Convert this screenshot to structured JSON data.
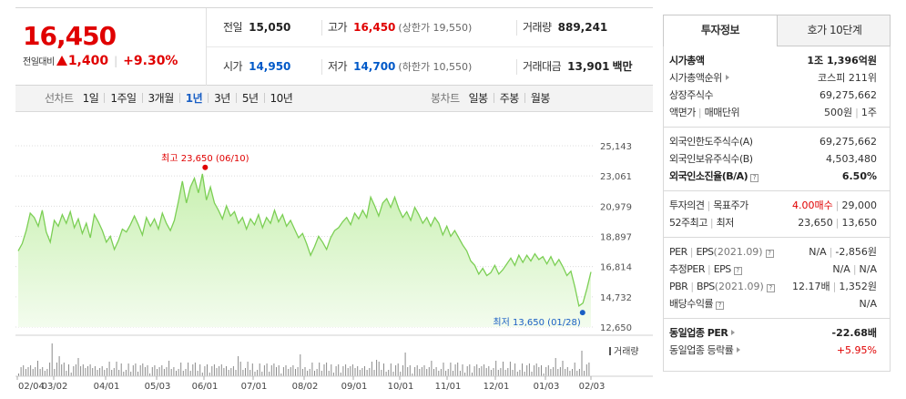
{
  "quote": {
    "price": "16,450",
    "compare_label": "전일대비",
    "compare_amount": "1,400",
    "compare_rate": "+9.30%",
    "prev_close_label": "전일",
    "prev_close": "15,050",
    "open_label": "시가",
    "open": "14,950",
    "high_label": "고가",
    "high": "16,450",
    "upper_limit": "(상한가 19,550)",
    "low_label": "저가",
    "low": "14,700",
    "lower_limit": "(하한가 10,550)",
    "volume_label": "거래량",
    "volume": "889,241",
    "amount_label": "거래대금",
    "amount": "13,901",
    "amount_unit": "백만",
    "colors": {
      "up": "#e00000",
      "down": "#0059c8"
    }
  },
  "period_bar": {
    "line_title": "선차트",
    "line_periods": [
      "1일",
      "1주일",
      "3개월",
      "1년",
      "3년",
      "5년",
      "10년"
    ],
    "active_period": "1년",
    "candle_title": "봉차트",
    "candle_periods": [
      "일봉",
      "주봉",
      "월봉"
    ]
  },
  "chart_data": {
    "type": "area",
    "y_ticks": [
      "25,143",
      "23,061",
      "20,979",
      "18,897",
      "16,814",
      "14,732",
      "12,650"
    ],
    "ylim": [
      12650,
      25143
    ],
    "x_ticks": [
      "02/04",
      "03/02",
      "04/01",
      "05/03",
      "06/01",
      "07/01",
      "08/02",
      "09/01",
      "10/01",
      "11/01",
      "12/01",
      "01/03",
      "02/03"
    ],
    "values": [
      17900,
      18400,
      19300,
      20500,
      20200,
      19600,
      20700,
      19200,
      18500,
      20000,
      19600,
      20400,
      19800,
      20600,
      19500,
      20100,
      19100,
      19800,
      18800,
      20400,
      19900,
      19300,
      18500,
      18900,
      18000,
      18600,
      19400,
      19200,
      19700,
      20300,
      19700,
      19000,
      20200,
      19600,
      20100,
      19400,
      20500,
      19800,
      19300,
      20000,
      21300,
      22700,
      21200,
      22300,
      22900,
      21900,
      23200,
      21400,
      22300,
      21200,
      20700,
      20100,
      21000,
      20300,
      20600,
      19800,
      20200,
      19400,
      20100,
      19700,
      20400,
      19500,
      20200,
      19800,
      20700,
      19900,
      20400,
      19600,
      20000,
      19400,
      18800,
      19100,
      18400,
      17600,
      18200,
      18900,
      18500,
      18000,
      18800,
      19300,
      19500,
      19900,
      20200,
      19700,
      20500,
      20100,
      20700,
      20200,
      21600,
      21000,
      20300,
      21200,
      21500,
      20900,
      21600,
      20800,
      20200,
      20600,
      20000,
      20900,
      20400,
      19800,
      20200,
      19600,
      20200,
      19800,
      19000,
      19600,
      18900,
      19300,
      18800,
      18300,
      17900,
      17200,
      16900,
      16300,
      16700,
      16200,
      16400,
      16900,
      16300,
      16600,
      17000,
      17400,
      16900,
      17600,
      17100,
      17600,
      17200,
      17700,
      17300,
      17500,
      17000,
      17500,
      16900,
      17300,
      16800,
      16200,
      16500,
      15400,
      14100,
      14300,
      15300,
      16450
    ],
    "high_annotation": "최고 23,650 (06/10)",
    "low_annotation": "최저 13,650 (01/28)",
    "high_value": 23650,
    "low_value": 13650,
    "volume_label": "거래량",
    "colors": {
      "line": "#7ccf55",
      "fill_top": "#c8f0b0",
      "fill_bottom": "#f3fcee",
      "high_dot": "#e00000",
      "low_dot": "#1a5fc4",
      "volume": "#8a8a8a"
    }
  },
  "right_panel": {
    "tabs": [
      "투자정보",
      "호가 10단계"
    ],
    "active_tab": "투자정보",
    "market_cap_label": "시가총액",
    "market_cap": "1조 1,396억원",
    "market_cap_rank_label": "시가총액순위",
    "market_cap_rank": "코스피 211위",
    "shares_label": "상장주식수",
    "shares": "69,275,662",
    "par_label": "액면가",
    "trade_unit_label": "매매단위",
    "par": "500원",
    "trade_unit": "1주",
    "foreign_limit_label": "외국인한도주식수(A)",
    "foreign_limit": "69,275,662",
    "foreign_hold_label": "외국인보유주식수(B)",
    "foreign_hold": "4,503,480",
    "foreign_ratio_label": "외국인소진율(B/A)",
    "foreign_ratio": "6.50%",
    "opinion_label": "투자의견",
    "target_label": "목표주가",
    "opinion": "4.00매수",
    "target": "29,000",
    "w52_high_label": "52주최고",
    "w52_low_label": "최저",
    "w52_high": "23,650",
    "w52_low": "13,650",
    "per_label": "PER",
    "eps_label": "EPS",
    "eps_year": "(2021.09)",
    "per": "N/A",
    "eps": "-2,856원",
    "est_per_label": "추정PER",
    "est_eps_label": "EPS",
    "est_per": "N/A",
    "est_eps": "N/A",
    "pbr_label": "PBR",
    "bps_label": "BPS",
    "bps_year": "(2021.09)",
    "pbr": "12.17배",
    "bps": "1,352원",
    "dividend_label": "배당수익률",
    "dividend": "N/A",
    "sector_per_label": "동일업종 PER",
    "sector_per": "-22.68배",
    "sector_rate_label": "동일업종 등락률",
    "sector_rate": "+5.95%"
  }
}
